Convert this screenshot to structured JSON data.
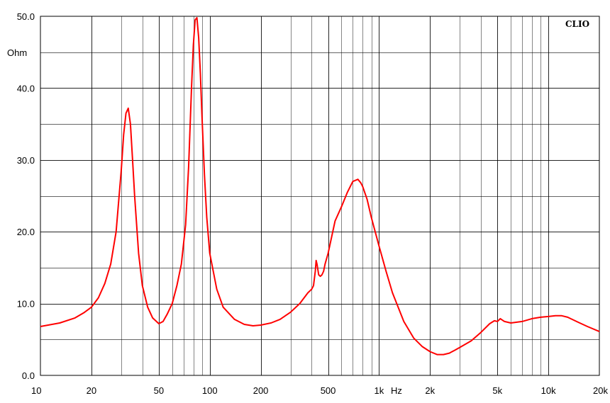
{
  "chart_data": {
    "type": "line",
    "brand": "CLIO",
    "y_unit": "Ohm",
    "x_unit": "Hz",
    "x_scale": "log",
    "xlim": [
      10,
      20000
    ],
    "ylim": [
      0,
      50
    ],
    "grid": true,
    "colors": {
      "curve": "#ff0000",
      "grid": "#000000",
      "background": "#ffffff"
    },
    "x_ticks": [
      {
        "value": 10,
        "label": "10"
      },
      {
        "value": 20,
        "label": "20"
      },
      {
        "value": 50,
        "label": "50"
      },
      {
        "value": 100,
        "label": "100"
      },
      {
        "value": 200,
        "label": "200"
      },
      {
        "value": 500,
        "label": "500"
      },
      {
        "value": 1000,
        "label": "1k"
      },
      {
        "value": 2000,
        "label": "2k"
      },
      {
        "value": 5000,
        "label": "5k"
      },
      {
        "value": 10000,
        "label": "10k"
      },
      {
        "value": 20000,
        "label": "20k"
      }
    ],
    "y_ticks": [
      {
        "value": 0,
        "label": "0.0"
      },
      {
        "value": 10,
        "label": "10.0"
      },
      {
        "value": 20,
        "label": "20.0"
      },
      {
        "value": 30,
        "label": "30.0"
      },
      {
        "value": 40,
        "label": "40.0"
      },
      {
        "value": 50,
        "label": "50.0"
      }
    ],
    "series": [
      {
        "color": "#ff0000",
        "x": [
          10,
          13,
          16,
          18,
          20,
          22,
          24,
          26,
          28,
          30,
          31,
          32,
          33,
          34,
          35,
          36,
          38,
          40,
          43,
          46,
          50,
          53,
          56,
          60,
          64,
          68,
          72,
          75,
          78,
          80,
          82,
          84,
          86,
          88,
          90,
          93,
          96,
          100,
          110,
          120,
          140,
          160,
          180,
          200,
          230,
          260,
          300,
          340,
          380,
          400,
          410,
          420,
          425,
          430,
          440,
          450,
          460,
          470,
          480,
          500,
          550,
          600,
          650,
          700,
          750,
          780,
          800,
          850,
          900,
          1000,
          1100,
          1200,
          1400,
          1600,
          1800,
          2000,
          2200,
          2400,
          2600,
          2800,
          3000,
          3500,
          4000,
          4500,
          4800,
          5000,
          5200,
          5500,
          6000,
          7000,
          8000,
          9000,
          10000,
          11000,
          12000,
          13000,
          15000,
          17000,
          20000
        ],
        "y": [
          6.8,
          7.3,
          8.0,
          8.7,
          9.5,
          10.8,
          12.8,
          15.5,
          20.0,
          28.5,
          33.5,
          36.5,
          37.2,
          35.0,
          30.0,
          25.0,
          17.0,
          12.5,
          9.5,
          8.0,
          7.2,
          7.5,
          8.5,
          10.0,
          12.5,
          15.5,
          21.0,
          29.0,
          40.0,
          46.0,
          49.5,
          49.8,
          47.0,
          42.0,
          36.0,
          28.0,
          22.0,
          17.0,
          12.0,
          9.5,
          7.8,
          7.1,
          6.9,
          7.0,
          7.3,
          7.8,
          8.8,
          10.0,
          11.5,
          12.0,
          12.5,
          14.5,
          16.0,
          15.5,
          14.0,
          13.8,
          14.0,
          14.5,
          15.5,
          17.0,
          21.5,
          23.5,
          25.5,
          27.0,
          27.3,
          26.8,
          26.3,
          24.5,
          22.0,
          18.0,
          14.5,
          11.5,
          7.5,
          5.2,
          4.0,
          3.3,
          2.9,
          2.9,
          3.1,
          3.5,
          3.9,
          4.8,
          6.0,
          7.2,
          7.6,
          7.5,
          7.9,
          7.5,
          7.3,
          7.5,
          7.9,
          8.1,
          8.2,
          8.3,
          8.3,
          8.1,
          7.4,
          6.8,
          6.1
        ]
      }
    ]
  }
}
